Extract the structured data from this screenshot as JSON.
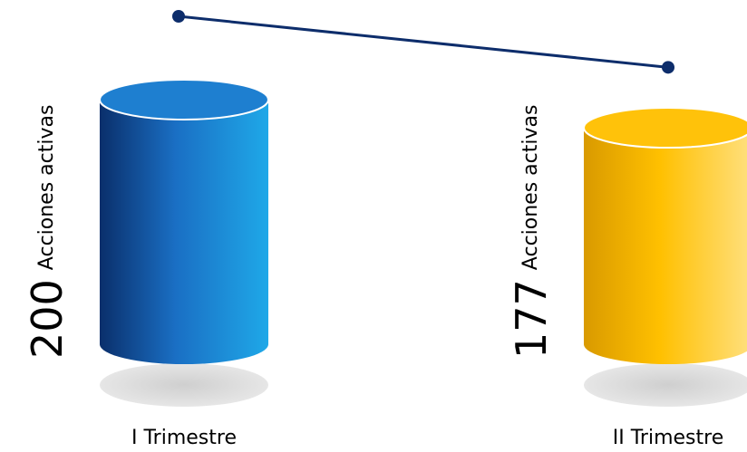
{
  "chart_data": {
    "type": "bar",
    "style": "3d-cylinder-with-trend-line",
    "categories": [
      "I Trimestre",
      "II Trimestre"
    ],
    "values": [
      200,
      177
    ],
    "value_unit_label": "Acciones activas",
    "title": "",
    "xlabel": "",
    "ylabel": "",
    "grid": false,
    "legend": "none"
  },
  "colors": {
    "bar_1_dark": "#0a2f6b",
    "bar_1_mid": "#1a6fc4",
    "bar_1_light": "#1fa8e8",
    "bar_1_top": "#1e7fd0",
    "bar_2_dark": "#d99a00",
    "bar_2_mid": "#ffc000",
    "bar_2_light": "#ffe080",
    "bar_2_top": "#ffc20a",
    "shadow": "#d9d9d9",
    "trend_line": "#0d2d6b"
  }
}
